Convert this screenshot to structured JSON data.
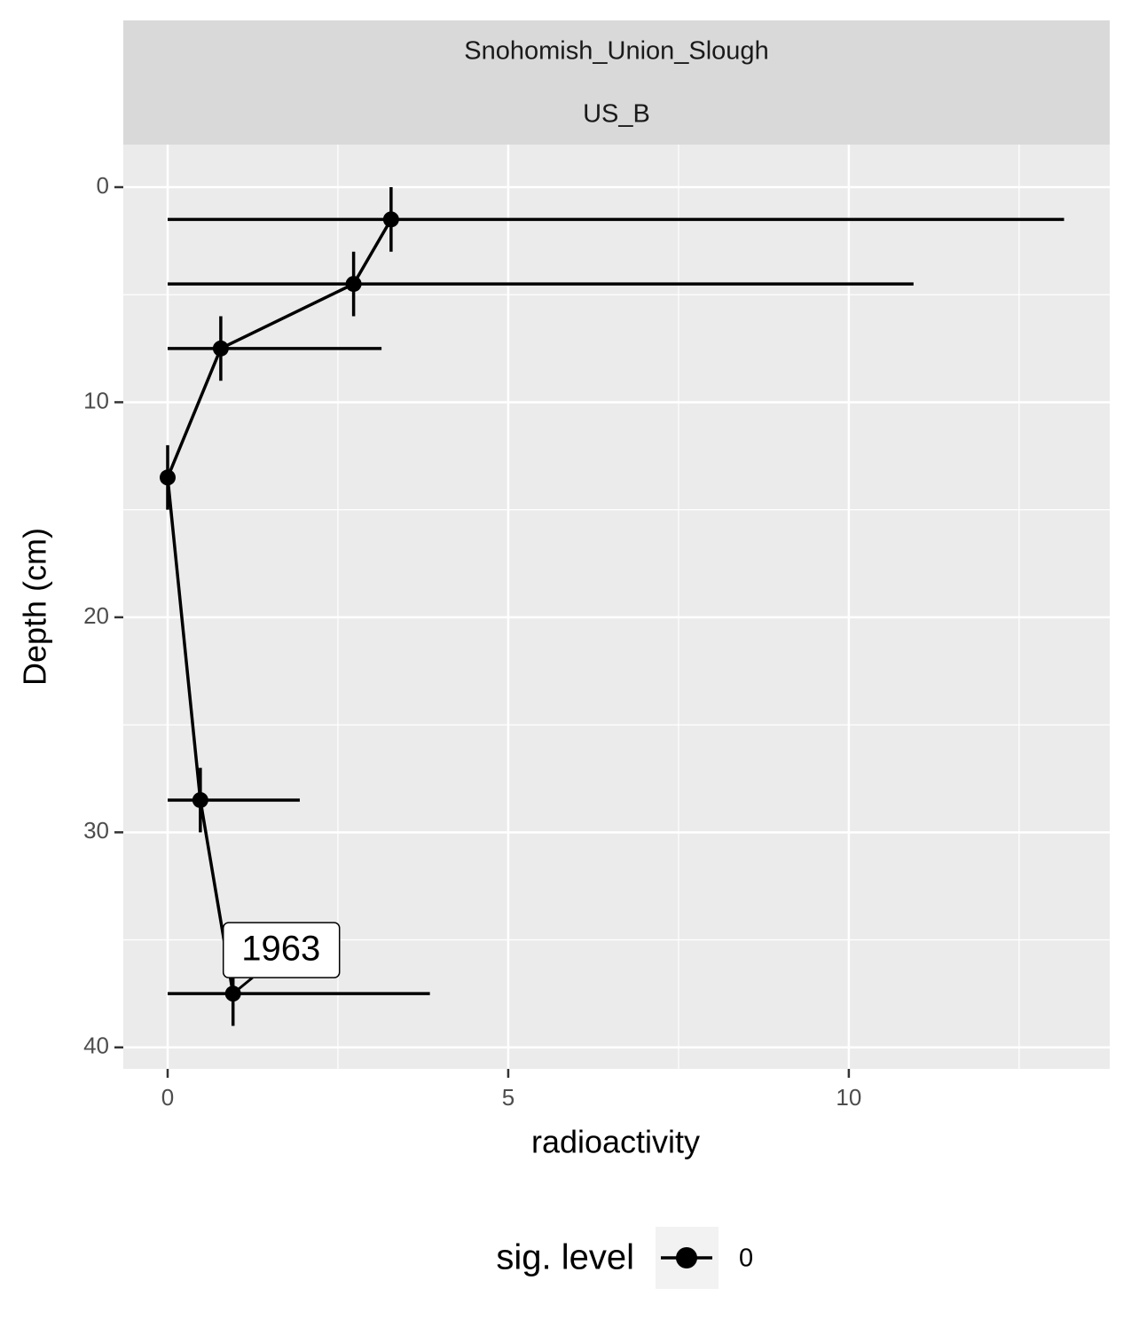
{
  "chart_data": {
    "type": "scatter",
    "facet": [
      "Snohomish_Union_Slough",
      "US_B"
    ],
    "x_label": "radioactivity",
    "y_label": "Depth (cm)",
    "legend_title": "sig. level",
    "series": [
      {
        "name": "0",
        "color": "#000000",
        "x": [
          3.28,
          2.73,
          0.78,
          0,
          0.48,
          0.96
        ],
        "values": [
          1.5,
          4.5,
          7.5,
          13.5,
          28.5,
          37.5
        ],
        "xmin": [
          0,
          0,
          0,
          0,
          0,
          0
        ],
        "xmax": [
          13.16,
          10.95,
          3.14,
          0,
          1.94,
          3.85
        ],
        "ymin": [
          0,
          3,
          6,
          12,
          27,
          36
        ],
        "ymax": [
          3,
          6,
          9,
          15,
          30,
          39
        ]
      }
    ],
    "annotations": [
      "1963"
    ],
    "xlim": [
      -0.651,
      13.83
    ],
    "xticks": [
      0,
      5,
      10
    ],
    "ylim": [
      -1.98,
      41.0
    ],
    "yticks": [
      0,
      10,
      20,
      30,
      40
    ],
    "y_reversed": true,
    "grid": true
  }
}
